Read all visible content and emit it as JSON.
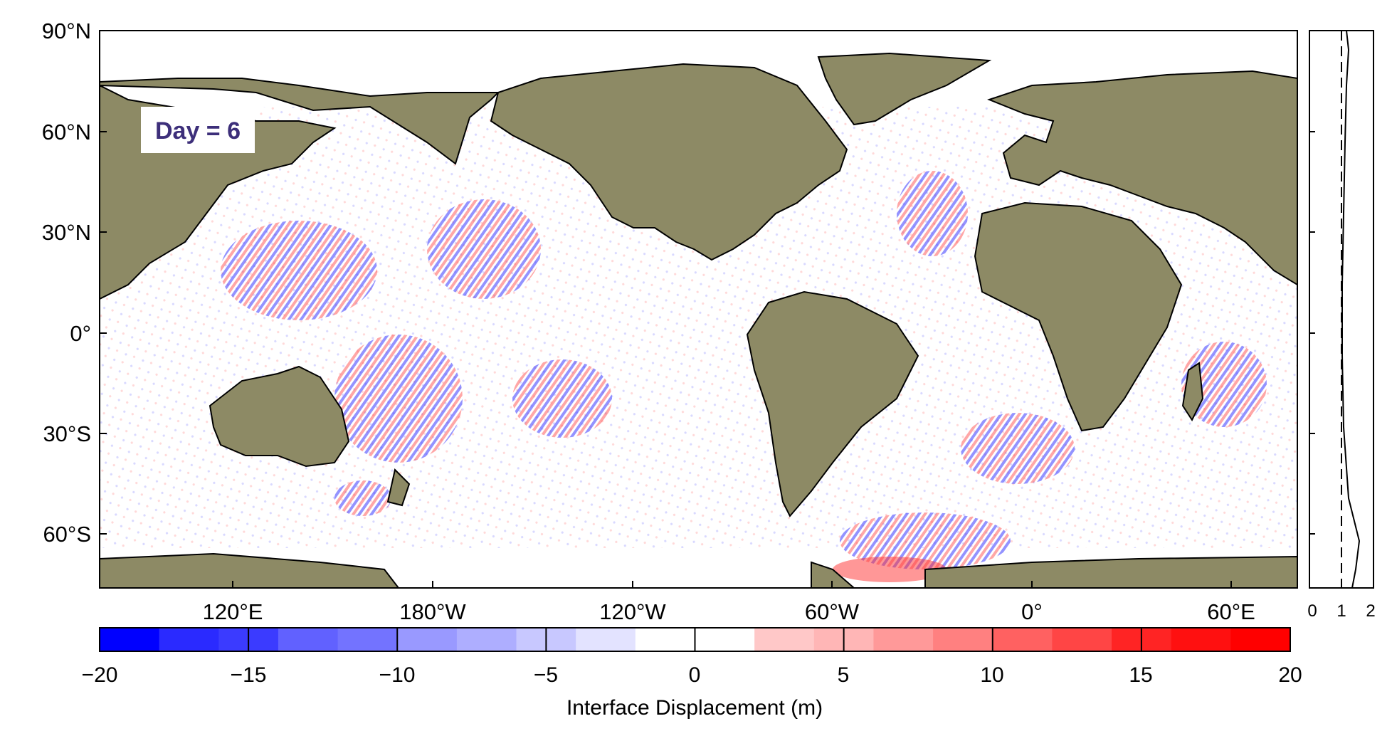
{
  "map": {
    "day_label": "Day = 6",
    "lat_labels": [
      "90°N",
      "60°N",
      "30°N",
      "0°",
      "30°S",
      "60°S"
    ],
    "lon_labels": [
      "120°E",
      "180°W",
      "120°W",
      "60°W",
      "0°",
      "60°E"
    ],
    "land_color": "#8d8a65",
    "ocean_color": "#ffffff"
  },
  "side_profile": {
    "x_ticks": [
      "0",
      "1",
      "2"
    ]
  },
  "colorbar": {
    "ticks": [
      "−20",
      "−15",
      "−10",
      "−5",
      "0",
      "5",
      "10",
      "15",
      "20"
    ],
    "label": "Interface Displacement (m)",
    "colors": [
      "#0000ff",
      "#2a2aff",
      "#3b3bff",
      "#6161ff",
      "#7373ff",
      "#9999ff",
      "#aeaeff",
      "#c8c8ff",
      "#e3e3ff",
      "#ffffff",
      "#ffffff",
      "#ffc8c8",
      "#ffb6b6",
      "#ff9999",
      "#ff8080",
      "#ff6161",
      "#ff4545",
      "#ff2424",
      "#ff1010",
      "#ff0000"
    ]
  }
}
